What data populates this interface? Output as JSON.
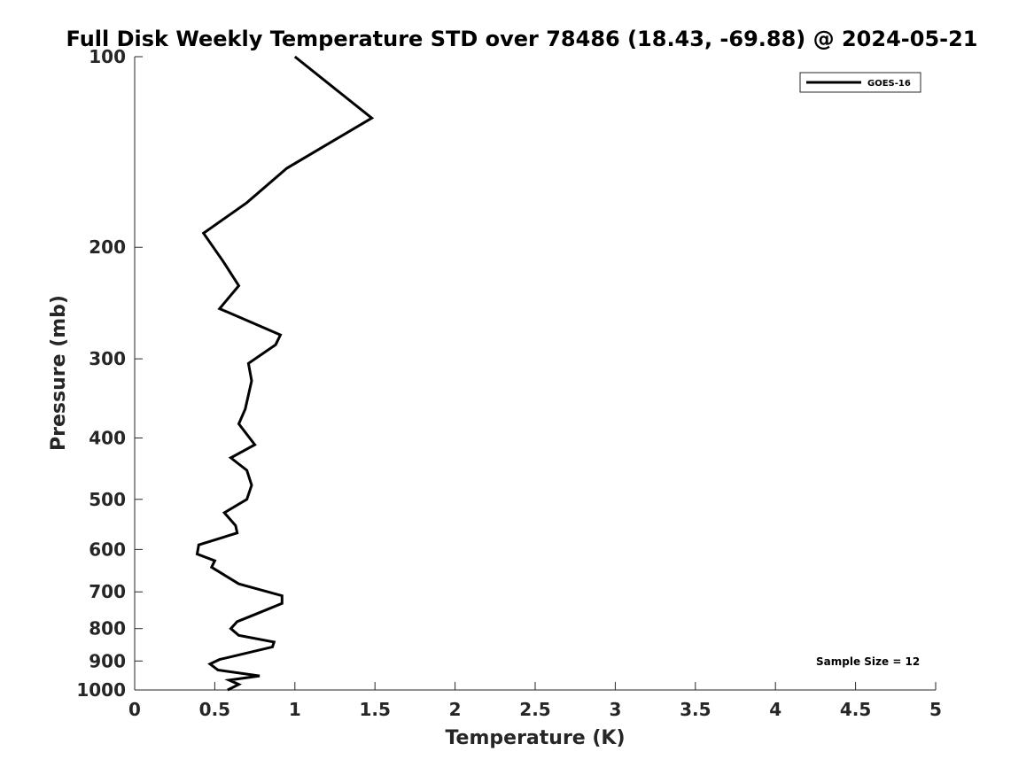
{
  "chart_data": {
    "type": "line",
    "title": "Full Disk Weekly Temperature STD over 78486 (18.43, -69.88) @ 2024-05-21",
    "xlabel": "Temperature (K)",
    "ylabel": "Pressure (mb)",
    "xlim": [
      0,
      5
    ],
    "ylim": [
      100,
      1000
    ],
    "y_scale": "log",
    "y_reversed": true,
    "grid": false,
    "x_ticks": [
      "0",
      "0.5",
      "1",
      "1.5",
      "2",
      "2.5",
      "3",
      "3.5",
      "4",
      "4.5",
      "5"
    ],
    "y_ticks": [
      "100",
      "200",
      "300",
      "400",
      "500",
      "600",
      "700",
      "800",
      "900",
      "1000"
    ],
    "legend": {
      "position": "top-right",
      "entries": [
        "GOES-16"
      ]
    },
    "annotation": "Sample Size = 12",
    "series": [
      {
        "name": "GOES-16",
        "color": "#000000",
        "points": [
          [
            1.0,
            100
          ],
          [
            1.48,
            125
          ],
          [
            0.95,
            150
          ],
          [
            0.7,
            170
          ],
          [
            0.43,
            190
          ],
          [
            0.55,
            210
          ],
          [
            0.65,
            230
          ],
          [
            0.53,
            250
          ],
          [
            0.91,
            275
          ],
          [
            0.88,
            285
          ],
          [
            0.71,
            305
          ],
          [
            0.73,
            325
          ],
          [
            0.69,
            360
          ],
          [
            0.65,
            380
          ],
          [
            0.75,
            410
          ],
          [
            0.6,
            430
          ],
          [
            0.7,
            450
          ],
          [
            0.73,
            475
          ],
          [
            0.7,
            500
          ],
          [
            0.56,
            525
          ],
          [
            0.63,
            550
          ],
          [
            0.64,
            565
          ],
          [
            0.4,
            590
          ],
          [
            0.39,
            610
          ],
          [
            0.5,
            625
          ],
          [
            0.48,
            640
          ],
          [
            0.65,
            680
          ],
          [
            0.92,
            710
          ],
          [
            0.92,
            730
          ],
          [
            0.75,
            760
          ],
          [
            0.64,
            780
          ],
          [
            0.6,
            800
          ],
          [
            0.65,
            820
          ],
          [
            0.87,
            840
          ],
          [
            0.86,
            855
          ],
          [
            0.53,
            895
          ],
          [
            0.47,
            910
          ],
          [
            0.52,
            930
          ],
          [
            0.78,
            950
          ],
          [
            0.59,
            965
          ],
          [
            0.65,
            980
          ],
          [
            0.58,
            1000
          ]
        ]
      }
    ]
  }
}
